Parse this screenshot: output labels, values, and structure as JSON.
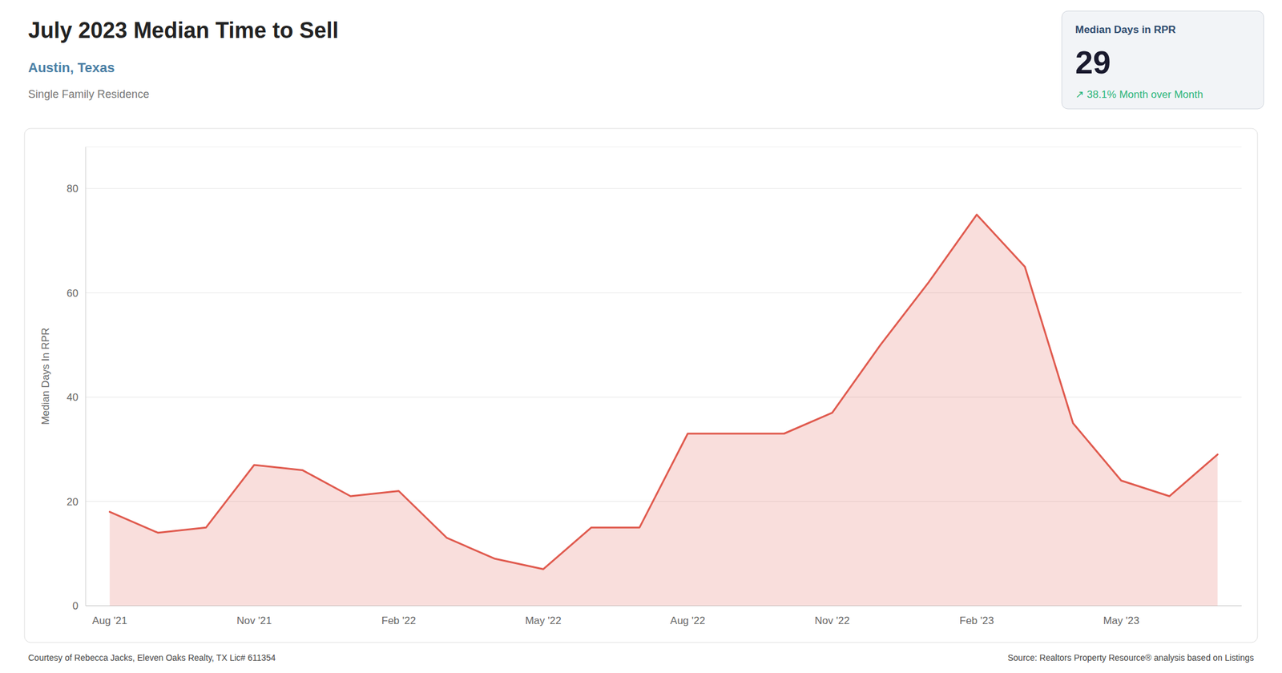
{
  "chart_data": {
    "type": "area",
    "title": "July 2023 Median Time to Sell",
    "subtitle": "Austin, Texas",
    "annotations": [
      "Single Family Residence",
      "Median Days in RPR",
      "29",
      "↗  38.1% Month over Month",
      "Courtesy of Rebecca Jacks, Eleven Oaks Realty, TX Lic# 611354",
      "Source: Realtors Property Resource® analysis based on Listings"
    ],
    "ylabel": "Median Days In RPR",
    "categories": [
      "Aug '21",
      null,
      null,
      "Nov '21",
      null,
      null,
      "Feb '22",
      null,
      null,
      "May '22",
      null,
      null,
      "Aug '22",
      null,
      null,
      "Nov '22",
      null,
      null,
      "Feb '23",
      null,
      null,
      "May '23",
      null,
      null
    ],
    "values": [
      18,
      14,
      15,
      27,
      26,
      21,
      22,
      13,
      9,
      7,
      15,
      15,
      33,
      33,
      33,
      37,
      50,
      62,
      75,
      65,
      35,
      24,
      21,
      29
    ],
    "color": "#e05a4e",
    "ylim": [
      0,
      88
    ],
    "yticks": [
      0,
      20,
      40,
      60,
      80
    ],
    "grid": true
  }
}
